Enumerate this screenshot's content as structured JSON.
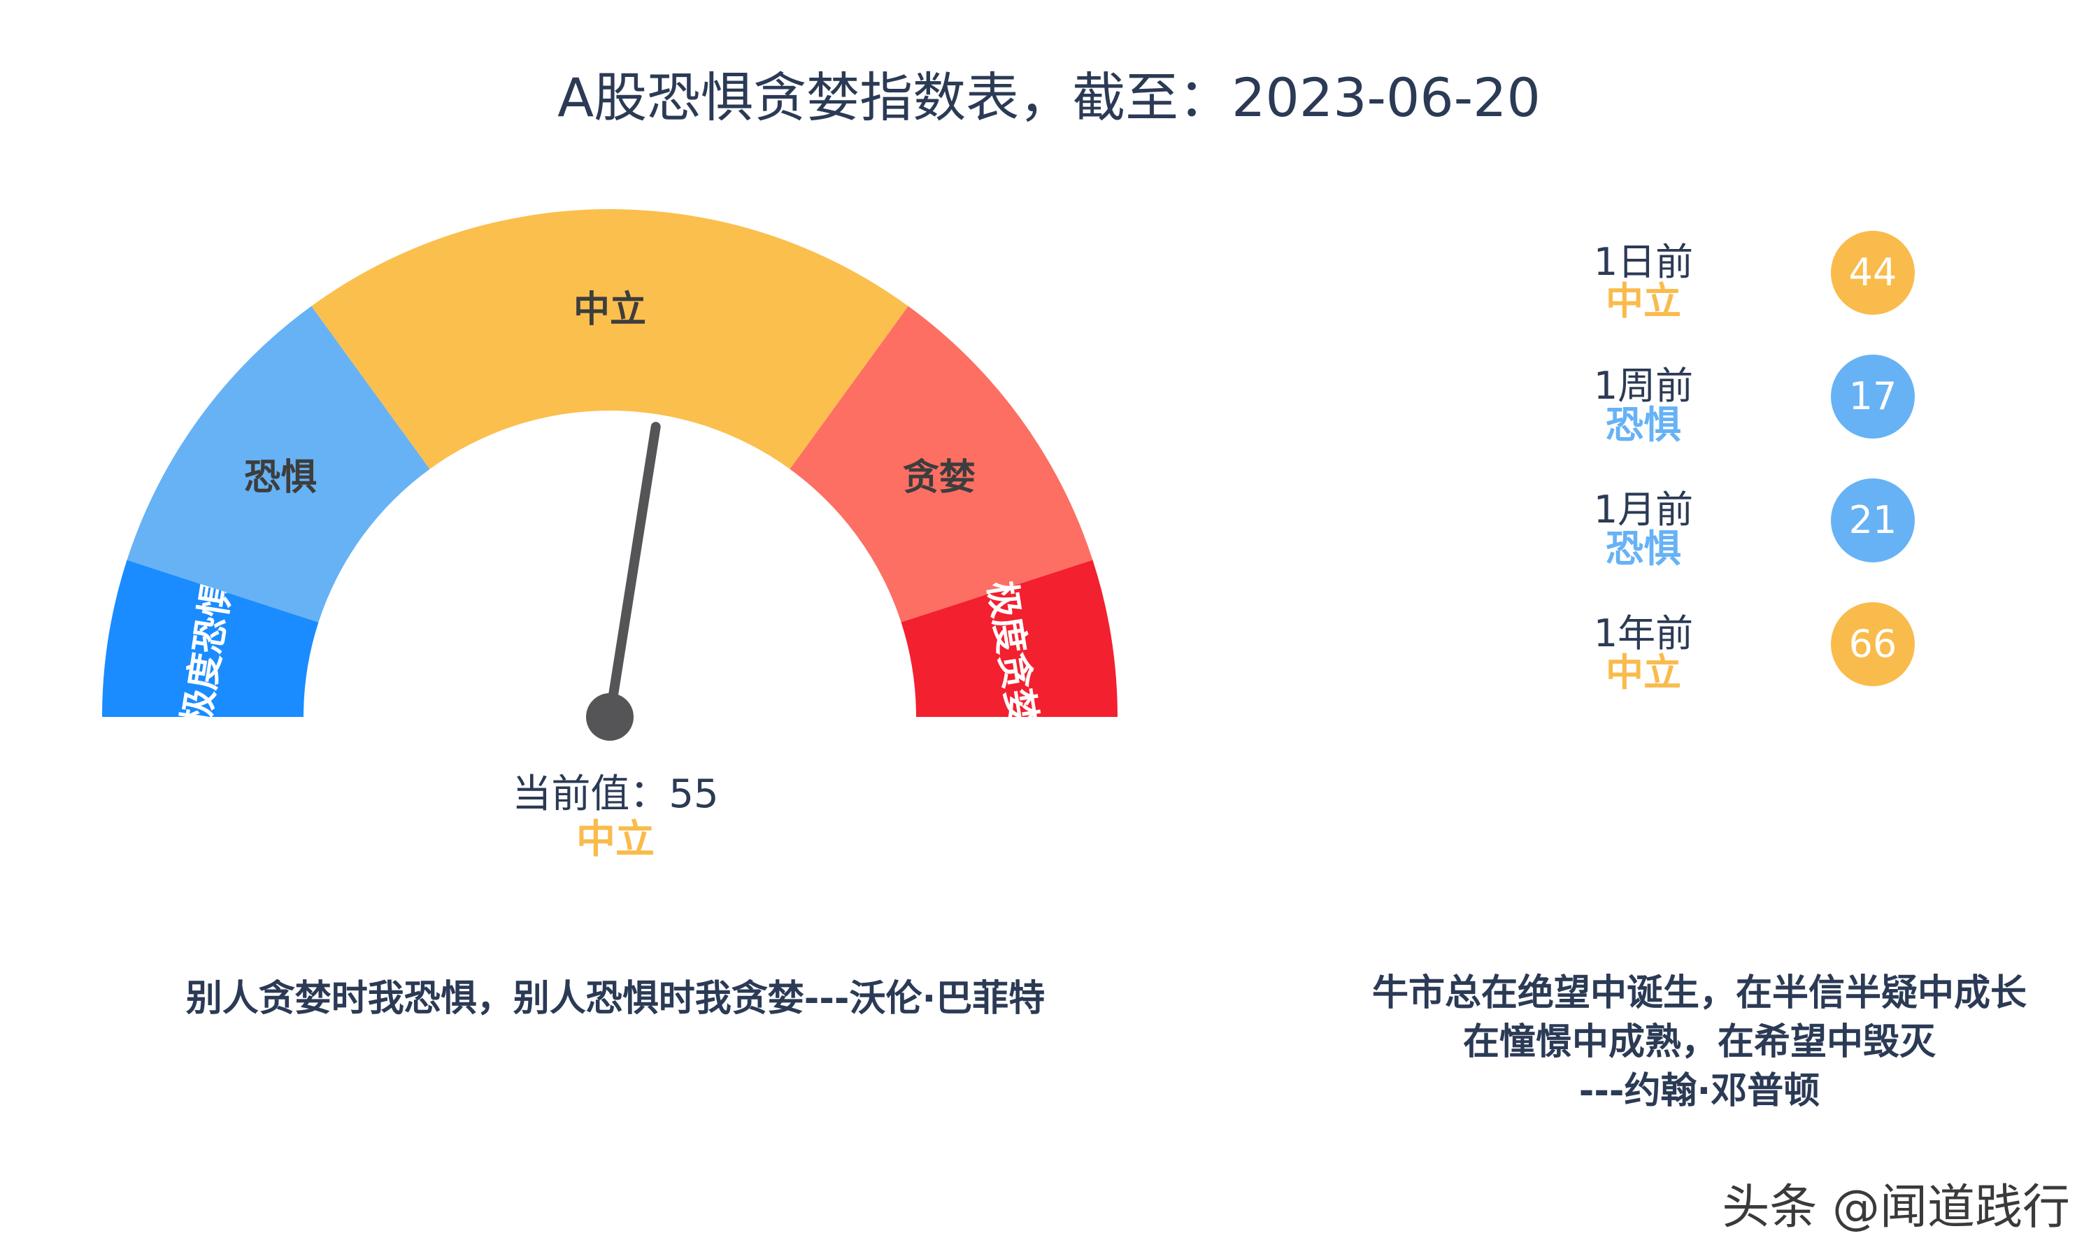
{
  "title": "A股恐惧贪婪指数表，截至：2023-06-20",
  "chart_data": {
    "type": "gauge",
    "range": [
      0,
      100
    ],
    "bands": [
      {
        "label": "极度恐惧",
        "from": 0,
        "to": 10,
        "color": "#1a8cff"
      },
      {
        "label": "恐惧",
        "from": 10,
        "to": 30,
        "color": "#66b2f5"
      },
      {
        "label": "中立",
        "from": 30,
        "to": 70,
        "color": "#fbbf4e"
      },
      {
        "label": "贪婪",
        "from": 70,
        "to": 90,
        "color": "#fd6f63"
      },
      {
        "label": "极度贪婪",
        "from": 90,
        "to": 100,
        "color": "#f3202f"
      }
    ],
    "current": {
      "label": "当前值：55",
      "value": 55,
      "level": "中立"
    },
    "history": [
      {
        "period": "1日前",
        "value": 44,
        "level": "中立",
        "color": "#f9bb4b"
      },
      {
        "period": "1周前",
        "value": 17,
        "level": "恐惧",
        "color": "#66b2f5"
      },
      {
        "period": "1月前",
        "value": 21,
        "level": "恐惧",
        "color": "#66b2f5"
      },
      {
        "period": "1年前",
        "value": 66,
        "level": "中立",
        "color": "#f9bb4b"
      }
    ]
  },
  "quotes": {
    "left": "别人贪婪时我恐惧，别人恐惧时我贪婪---沃伦·巴菲特",
    "right": [
      "牛市总在绝望中诞生，在半信半疑中成长",
      "在憧憬中成熟，在希望中毁灭",
      "---约翰·邓普顿"
    ]
  },
  "watermark": "头条 @闻道践行"
}
